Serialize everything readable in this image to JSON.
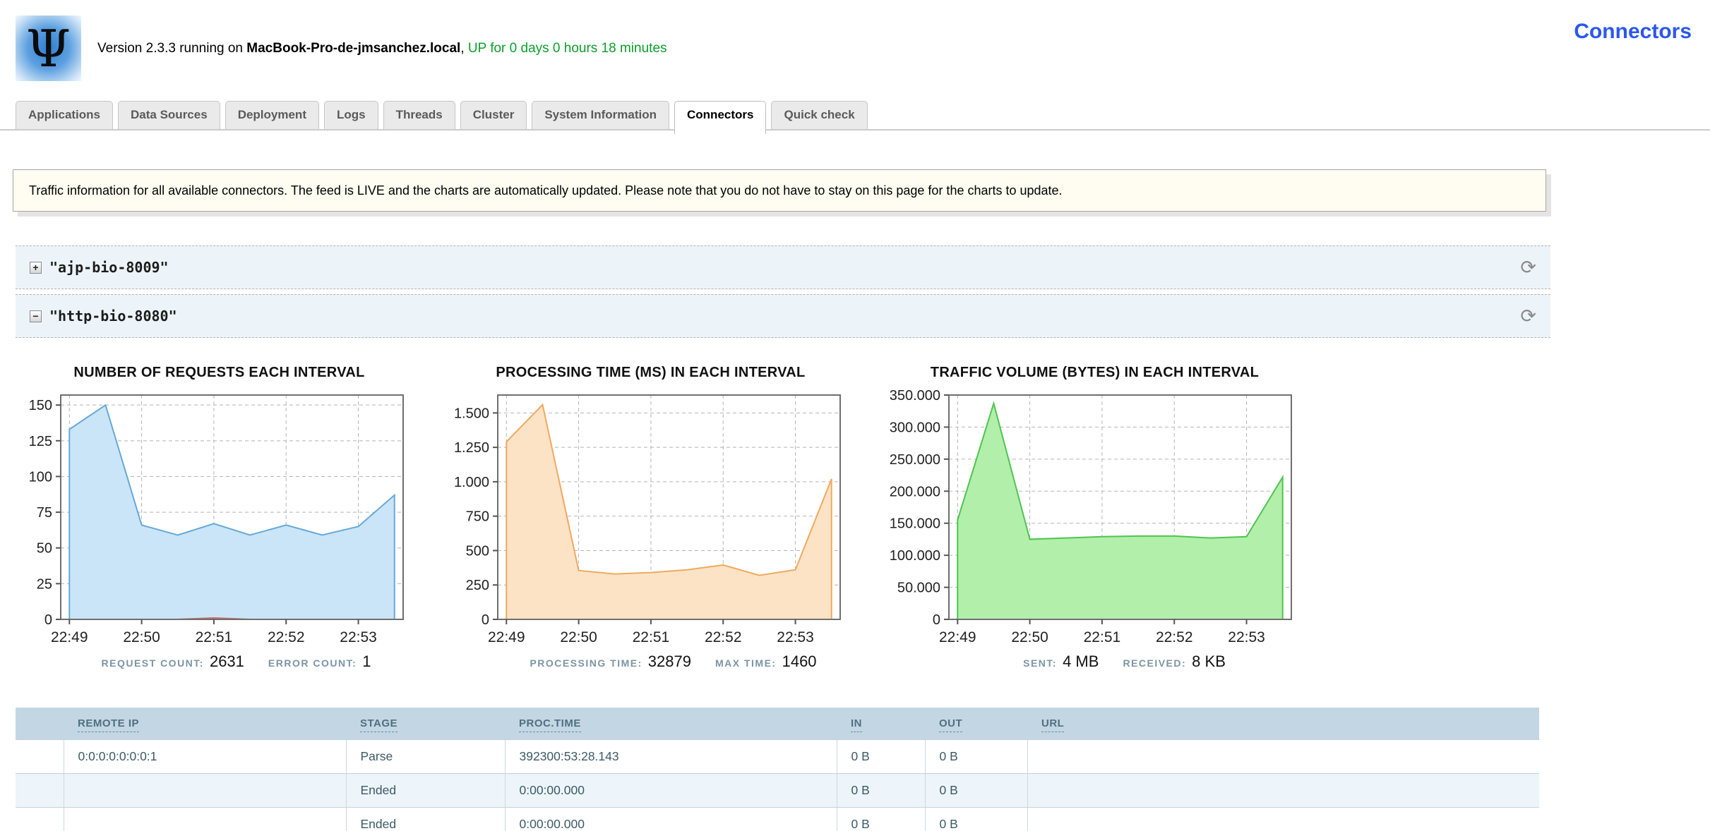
{
  "header": {
    "logo_glyph": "Ψ",
    "version_prefix": "Version 2.3.3 running on",
    "hostname": "MacBook-Pro-de-jmsanchez.local",
    "separator": ", ",
    "uptime": "UP for 0 days 0 hours 18 minutes",
    "page_title": "Connectors"
  },
  "tabs": [
    {
      "label": "Applications",
      "active": false
    },
    {
      "label": "Data Sources",
      "active": false
    },
    {
      "label": "Deployment",
      "active": false
    },
    {
      "label": "Logs",
      "active": false
    },
    {
      "label": "Threads",
      "active": false
    },
    {
      "label": "Cluster",
      "active": false
    },
    {
      "label": "System Information",
      "active": false
    },
    {
      "label": "Connectors",
      "active": true
    },
    {
      "label": "Quick check",
      "active": false
    }
  ],
  "banner": {
    "text": "Traffic information for all available connectors. The feed is LIVE and the charts are automatically updated. Please note that you do not have to stay on this page for the charts to update."
  },
  "connectors": [
    {
      "name": "\"ajp-bio-8009\"",
      "expanded": false,
      "toggle_glyph": "+",
      "refresh_glyph": "⟳"
    },
    {
      "name": "\"http-bio-8080\"",
      "expanded": true,
      "toggle_glyph": "−",
      "refresh_glyph": "⟳"
    }
  ],
  "chart_data": [
    {
      "type": "area",
      "title": "NUMBER OF REQUESTS EACH INTERVAL",
      "x": [
        0,
        0.5,
        1,
        1.5,
        2,
        2.5,
        3,
        3.5,
        4,
        4.5
      ],
      "xlim": [
        -0.12,
        4.62
      ],
      "x_ticks": [
        0,
        1,
        2,
        3,
        4
      ],
      "x_tick_labels": [
        "22:49",
        "22:50",
        "22:51",
        "22:52",
        "22:53"
      ],
      "ylim": [
        0,
        157
      ],
      "y_ticks": [
        0,
        25,
        50,
        75,
        100,
        125,
        150
      ],
      "y_tick_labels": [
        "0",
        "25",
        "50",
        "75",
        "100",
        "125",
        "150"
      ],
      "label_width": 48,
      "series": [
        {
          "name": "requests",
          "values": [
            133,
            150,
            66,
            59,
            67,
            59,
            66,
            59,
            65,
            87
          ],
          "fill": "#cbe5f8",
          "stroke": "#65a9da"
        },
        {
          "name": "errors",
          "values": [
            0,
            0,
            0,
            0,
            1,
            0,
            0,
            0,
            0,
            0
          ],
          "fill": "none",
          "stroke": "#c96a6a"
        }
      ],
      "stats": [
        {
          "label": "REQUEST COUNT",
          "value": "2631"
        },
        {
          "label": "ERROR COUNT",
          "value": "1"
        }
      ]
    },
    {
      "type": "area",
      "title": "PROCESSING TIME (MS) IN EACH INTERVAL",
      "x": [
        0,
        0.5,
        1,
        1.5,
        2,
        2.5,
        3,
        3.5,
        4,
        4.5
      ],
      "xlim": [
        -0.12,
        4.62
      ],
      "x_ticks": [
        0,
        1,
        2,
        3,
        4
      ],
      "x_tick_labels": [
        "22:49",
        "22:50",
        "22:51",
        "22:52",
        "22:53"
      ],
      "ylim": [
        0,
        1630
      ],
      "y_ticks": [
        0,
        250,
        500,
        750,
        1000,
        1250,
        1500
      ],
      "y_tick_labels": [
        "0",
        "250",
        "500",
        "750",
        "1.000",
        "1.250",
        "1.500"
      ],
      "label_width": 64,
      "series": [
        {
          "name": "processing-time",
          "values": [
            1290,
            1560,
            355,
            330,
            340,
            360,
            395,
            320,
            360,
            1020
          ],
          "fill": "#fce3c6",
          "stroke": "#f0a95f"
        }
      ],
      "stats": [
        {
          "label": "PROCESSING TIME",
          "value": "32879"
        },
        {
          "label": "MAX TIME",
          "value": "1460"
        }
      ]
    },
    {
      "type": "area",
      "title": "TRAFFIC VOLUME (BYTES) IN EACH INTERVAL",
      "x": [
        0,
        0.5,
        1,
        1.5,
        2,
        2.5,
        3,
        3.5,
        4,
        4.5
      ],
      "xlim": [
        -0.12,
        4.62
      ],
      "x_ticks": [
        0,
        1,
        2,
        3,
        4
      ],
      "x_tick_labels": [
        "22:49",
        "22:50",
        "22:51",
        "22:52",
        "22:53"
      ],
      "ylim": [
        0,
        350000
      ],
      "y_ticks": [
        0,
        50000,
        100000,
        150000,
        200000,
        250000,
        300000,
        350000
      ],
      "y_tick_labels": [
        "0",
        "50.000",
        "100.000",
        "150.000",
        "200.000",
        "250.000",
        "300.000",
        "350.000"
      ],
      "label_width": 84,
      "series": [
        {
          "name": "traffic-volume",
          "values": [
            155000,
            337000,
            125000,
            127000,
            129000,
            130000,
            130000,
            127000,
            129000,
            222000
          ],
          "fill": "#b2efab",
          "stroke": "#4fc44f"
        }
      ],
      "stats": [
        {
          "label": "SENT",
          "value": "4 MB"
        },
        {
          "label": "RECEIVED",
          "value": "8 KB"
        }
      ]
    }
  ],
  "table": {
    "headers": [
      "REMOTE IP",
      "STAGE",
      "PROC.TIME",
      "IN",
      "OUT",
      "URL"
    ],
    "rows": [
      [
        "0:0:0:0:0:0:0:1",
        "Parse",
        "392300:53:28.143",
        "0 B",
        "0 B",
        ""
      ],
      [
        "",
        "Ended",
        "0:00:00.000",
        "0 B",
        "0 B",
        ""
      ],
      [
        "",
        "Ended",
        "0:00:00.000",
        "0 B",
        "0 B",
        ""
      ]
    ]
  },
  "colors": {
    "page_title_blue": "#2b57f0",
    "uptime_green": "#0aa02a",
    "requests_fill": "#cbe5f8",
    "requests_stroke": "#65a9da",
    "errors_stroke": "#c96a6a",
    "processing_fill": "#fce3c6",
    "processing_stroke": "#f0a95f",
    "traffic_fill": "#b2efab",
    "traffic_stroke": "#4fc44f",
    "table_header_bg": "#c3d6e3",
    "banner_bg": "#fffcf1"
  }
}
